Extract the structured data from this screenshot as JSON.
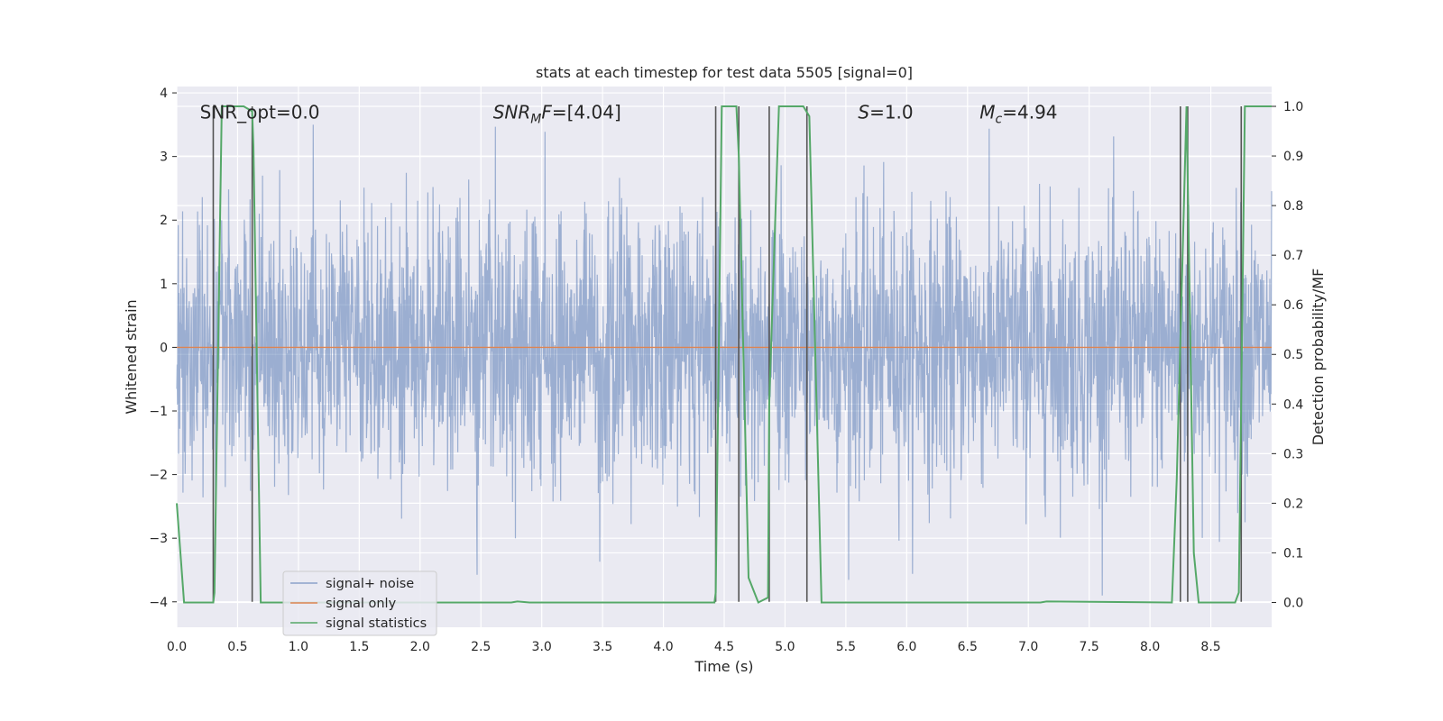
{
  "colors": {
    "background": "#eaeaf2",
    "grid": "#ffffff",
    "signal_noise": "#4c72b0",
    "signal_only": "#dd8452",
    "signal_statistics": "#55a868",
    "trigger_lines": "#555555"
  },
  "chart_data": {
    "type": "line",
    "title": "stats at each timestep for test data 5505 [signal=0]",
    "xlabel": "Time (s)",
    "ylabel_left": "Whitened strain",
    "ylabel_right": "Detection probability/MF",
    "xlim": [
      0,
      9.0
    ],
    "ylim_left": [
      -4.4,
      4.1
    ],
    "ylim_right": [
      -0.05,
      1.04
    ],
    "x_ticks": [
      0.0,
      0.5,
      1.0,
      1.5,
      2.0,
      2.5,
      3.0,
      3.5,
      4.0,
      4.5,
      5.0,
      5.5,
      6.0,
      6.5,
      7.0,
      7.5,
      8.0,
      8.5
    ],
    "x_tick_labels": [
      "0.0",
      "0.5",
      "1.0",
      "1.5",
      "2.0",
      "2.5",
      "3.0",
      "3.5",
      "4.0",
      "4.5",
      "5.0",
      "5.5",
      "6.0",
      "6.5",
      "7.0",
      "7.5",
      "8.0",
      "8.5"
    ],
    "y_left_ticks": [
      4,
      3,
      2,
      1,
      0,
      -1,
      -2,
      -3,
      -4
    ],
    "y_left_tick_labels": [
      "4",
      "3",
      "2",
      "1",
      "0",
      "−1",
      "−2",
      "−3",
      "−4"
    ],
    "y_right_ticks": [
      1.0,
      0.9,
      0.8,
      0.7,
      0.6,
      0.5,
      0.4,
      0.3,
      0.2,
      0.1,
      0.0
    ],
    "y_right_tick_labels": [
      "1.0",
      "0.9",
      "0.8",
      "0.7",
      "0.6",
      "0.5",
      "0.4",
      "0.3",
      "0.2",
      "0.1",
      "0.0"
    ],
    "grid": true,
    "legend_position": "lower-left",
    "series": [
      {
        "name": "signal+ noise",
        "axis": "left",
        "kind": "noise",
        "x_range": [
          0,
          9.0
        ],
        "amplitude_sigma": 1.05,
        "typical_peak": 2.6
      },
      {
        "name": "signal only",
        "axis": "left",
        "x": [
          0,
          9.0
        ],
        "y": [
          0,
          0
        ]
      },
      {
        "name": "signal statistics",
        "axis": "right",
        "x": [
          0.0,
          0.06,
          0.15,
          0.3,
          0.31,
          0.37,
          0.45,
          0.55,
          0.62,
          0.63,
          0.69,
          2.75,
          2.8,
          2.9,
          4.42,
          4.43,
          4.48,
          4.6,
          4.62,
          4.7,
          4.78,
          4.86,
          4.87,
          4.95,
          5.15,
          5.2,
          5.3,
          7.1,
          7.15,
          8.18,
          8.22,
          8.3,
          8.36,
          8.4,
          8.55,
          8.7,
          8.73,
          8.78,
          8.85,
          9.0
        ],
        "y": [
          0.2,
          0.0,
          0.0,
          0.0,
          0.02,
          1.0,
          1.0,
          1.0,
          0.99,
          0.92,
          0.0,
          0.0,
          0.002,
          0.0,
          0.0,
          0.02,
          1.0,
          1.0,
          0.9,
          0.05,
          0.0,
          0.01,
          0.4,
          1.0,
          1.0,
          0.98,
          0.0,
          0.0,
          0.002,
          0.0,
          0.25,
          1.0,
          0.1,
          0.0,
          0.0,
          0.0,
          0.02,
          1.0,
          1.0,
          1.0
        ]
      }
    ],
    "trigger_lines_x": [
      0.3,
      0.62,
      4.43,
      4.62,
      4.87,
      5.18,
      8.25,
      8.31,
      8.75
    ],
    "trigger_lines_top": 1.0,
    "annotations": [
      {
        "x": 0.19,
        "y": 3.6,
        "text": "SNR_opt=0.0",
        "italic": false
      },
      {
        "x": 2.6,
        "y": 3.6,
        "text": "SNR_MF=[4.04]",
        "italic": true,
        "base": "SNR",
        "sub": "M",
        "rest": "F=[4.04]"
      },
      {
        "x": 5.6,
        "y": 3.6,
        "text": "S=1.0",
        "italic": true,
        "base": "S",
        "rest": "=1.0"
      },
      {
        "x": 6.6,
        "y": 3.6,
        "text": "M_c=4.94",
        "italic": true,
        "base": "M",
        "sub": "c",
        "rest": "=4.94"
      }
    ]
  }
}
